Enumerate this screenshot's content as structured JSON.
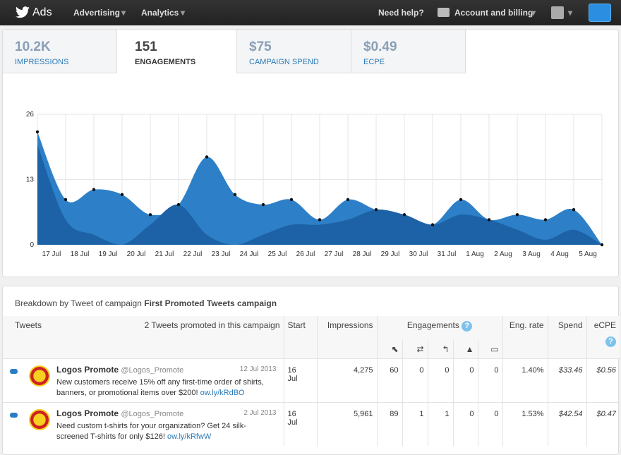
{
  "nav": {
    "brand": "Ads",
    "items": [
      "Advertising",
      "Analytics"
    ],
    "help": "Need help?",
    "account": "Account and billing"
  },
  "tabs": [
    {
      "value": "10.2K",
      "label": "IMPRESSIONS"
    },
    {
      "value": "151",
      "label": "ENGAGEMENTS"
    },
    {
      "value": "$75",
      "label": "CAMPAIGN SPEND"
    },
    {
      "value": "$0.49",
      "label": "ECPE"
    }
  ],
  "chart_data": {
    "type": "area",
    "categories": [
      "17 Jul",
      "18 Jul",
      "19 Jul",
      "20 Jul",
      "21 Jul",
      "22 Jul",
      "23 Jul",
      "24 Jul",
      "25 Jul",
      "26 Jul",
      "27 Jul",
      "28 Jul",
      "29 Jul",
      "30 Jul",
      "31 Jul",
      "1 Aug",
      "2 Aug",
      "3 Aug",
      "4 Aug",
      "5 Aug",
      null
    ],
    "series": [
      {
        "color": "#2d80c8",
        "values": [
          22.5,
          9,
          11,
          10,
          6,
          8,
          17.5,
          10,
          8,
          9,
          5,
          9,
          7,
          6,
          4,
          9,
          5,
          6,
          5,
          7,
          0
        ]
      },
      {
        "color": "#1d62a6",
        "values": [
          20,
          5,
          2,
          0,
          4,
          8,
          2,
          0,
          2,
          4,
          4,
          5,
          7,
          6,
          4,
          6,
          5,
          3,
          1,
          3,
          0
        ]
      }
    ],
    "ylim": [
      0,
      26
    ],
    "yticks": [
      0,
      13,
      26
    ],
    "grid": true
  },
  "breakdown": {
    "prefix": "Breakdown by Tweet of campaign",
    "campaign": "First Promoted Tweets campaign"
  },
  "table": {
    "headers": [
      "Tweets",
      "2 Tweets promoted in this campaign",
      "Start",
      "Impressions",
      "Engagements",
      "Eng. rate",
      "Spend",
      "eCPE"
    ],
    "rows": [
      {
        "name": "Logos Promote",
        "handle": "@Logos_Promote",
        "date": "12 Jul 2013",
        "text": "New customers receive 15% off any first-time order of shirts, banners, or promotional items over $200!",
        "link": "ow.ly/kRdBO",
        "cells": [
          "16 Jul",
          "4,275",
          "60",
          "0",
          "0",
          "0",
          "0",
          "1.40%",
          "$33.46",
          "$0.56"
        ]
      },
      {
        "name": "Logos Promote",
        "handle": "@Logos_Promote",
        "date": "2 Jul 2013",
        "text": "Need custom t-shirts for your organization? Get 24 silk-screened T-shirts for only $126!",
        "link": "ow.ly/kRfwW",
        "cells": [
          "16 Jul",
          "5,961",
          "89",
          "1",
          "1",
          "0",
          "0",
          "1.53%",
          "$42.54",
          "$0.47"
        ]
      }
    ]
  }
}
